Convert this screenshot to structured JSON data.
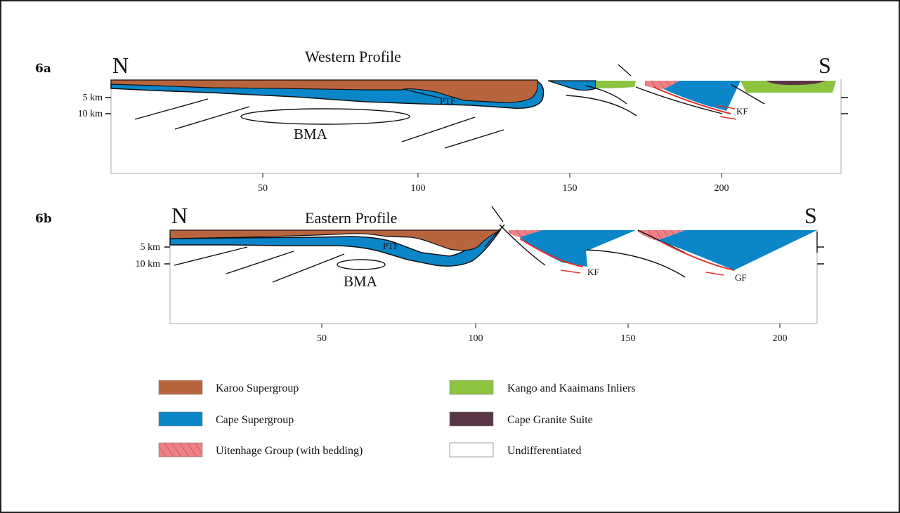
{
  "panels": [
    {
      "id": "6a",
      "label": "6a",
      "title": "Western Profile",
      "north": "N",
      "south": "S",
      "depth_ticks": [
        "5 km",
        "10 km"
      ],
      "x_ticks": [
        "50",
        "100",
        "150",
        "200"
      ],
      "labels": {
        "ptf": "PTF",
        "kf": "KF",
        "bma": "BMA"
      }
    },
    {
      "id": "6b",
      "label": "6b",
      "title": "Eastern Profile",
      "north": "N",
      "south": "S",
      "depth_ticks": [
        "5 km",
        "10 km"
      ],
      "x_ticks": [
        "50",
        "100",
        "150",
        "200"
      ],
      "labels": {
        "ptf": "PTF",
        "kf": "KF",
        "gf": "GF",
        "bma": "BMA"
      }
    }
  ],
  "legend": [
    {
      "label": "Karoo Supergroup",
      "color": "#B8653E"
    },
    {
      "label": "Kango and Kaaimans Inliers",
      "color": "#8CC43F"
    },
    {
      "label": "Cape Supergroup",
      "color": "#0A86C9"
    },
    {
      "label": "Cape Granite Suite",
      "color": "#5B3545"
    },
    {
      "label": "Uitenhage Group (with bedding)",
      "color": "#EE8086"
    },
    {
      "label": "Undifferentiated",
      "color": "#FFFFFF"
    }
  ],
  "colors": {
    "karoo": "#B8653E",
    "cape": "#0A86C9",
    "kango": "#8CC43F",
    "granite": "#5B3545",
    "uitenhage": "#EE8086",
    "fault_red": "#E0312C"
  }
}
